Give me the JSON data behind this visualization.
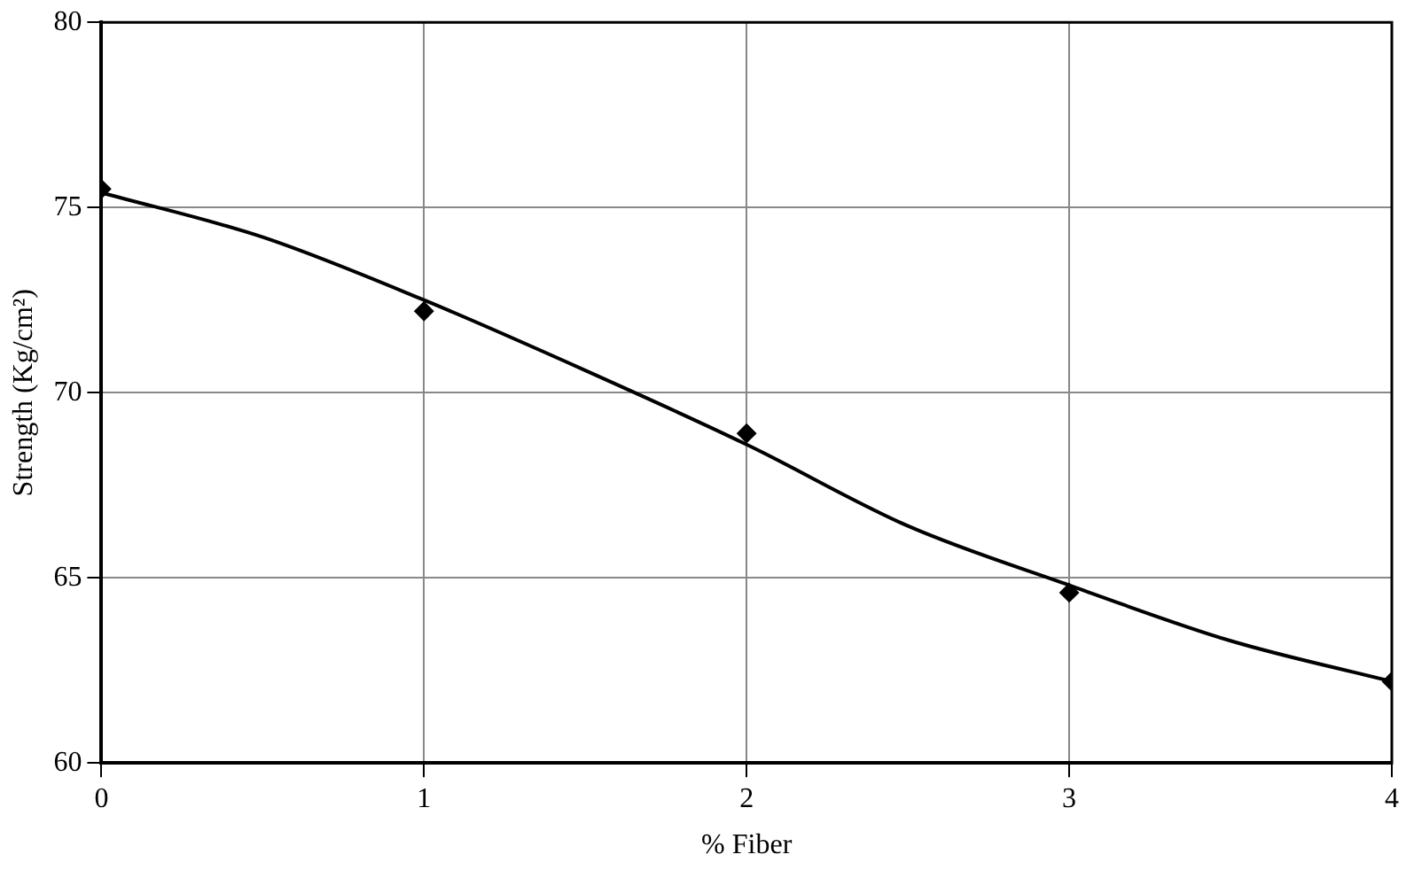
{
  "chart_data": {
    "type": "scatter",
    "xlabel": "% Fiber",
    "ylabel": "Strength (Kg/cm²)",
    "xlim": [
      0,
      4
    ],
    "xticks": [
      0,
      1,
      2,
      3,
      4
    ],
    "ylim": [
      60,
      80
    ],
    "yticks": [
      60,
      65,
      70,
      75,
      80
    ],
    "grid": true,
    "legend": false,
    "series": [
      {
        "color": "#000000",
        "marker": "diamond",
        "x": [
          0,
          1,
          2,
          3,
          4
        ],
        "values": [
          75.5,
          72.2,
          68.9,
          64.6,
          62.2
        ]
      },
      {
        "type": "line",
        "color": "#000000",
        "marker": "none",
        "line_style": "solid",
        "x": [
          0,
          0.5,
          1,
          1.5,
          2,
          2.5,
          3,
          3.5,
          4
        ],
        "values": [
          75.4,
          74.2,
          72.5,
          70.6,
          68.6,
          66.4,
          64.8,
          63.3,
          62.2
        ]
      }
    ]
  }
}
